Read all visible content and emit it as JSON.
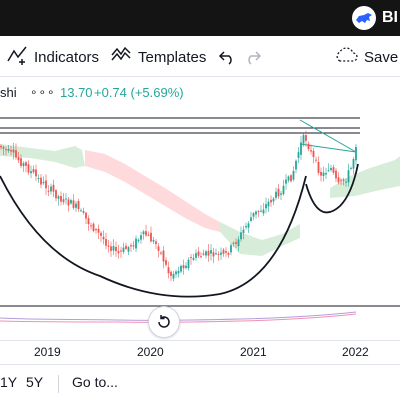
{
  "brand": {
    "text": "BI",
    "logo": "bull-logo-icon"
  },
  "toolbar": {
    "indicators_label": "Indicators",
    "templates_label": "Templates",
    "save_label": "Save",
    "undo_icon": "undo-icon",
    "redo_icon": "redo-icon"
  },
  "symbol": {
    "name_fragment": "shi",
    "menu": "∘∘∘",
    "price": "13.70",
    "change": "+0.74 (+5.69%)",
    "change_color": "#26a69a"
  },
  "time_axis": {
    "labels": [
      "2019",
      "2020",
      "2021",
      "2022"
    ]
  },
  "bottom_bar": {
    "ranges": [
      "1Y",
      "5Y"
    ],
    "goto_label": "Go to..."
  },
  "colors": {
    "up": "#26a69a",
    "down": "#ef5350",
    "cloud_green": "#c8e6c9",
    "cloud_red": "#ffcdd2"
  }
}
